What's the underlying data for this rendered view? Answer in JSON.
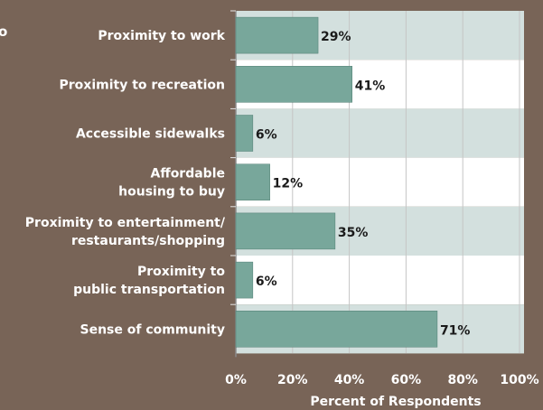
{
  "cut_off_text": "o",
  "colors": {
    "background": "#786457",
    "band_light": "#d3e0de",
    "band_white": "#ffffff",
    "bar": "#78a79b",
    "bar_stroke": "#4f7d72",
    "grid": "#c5c5c5",
    "label_text": "#ffffff",
    "value_text": "#1a1a1a"
  },
  "chart_data": {
    "type": "bar",
    "orientation": "horizontal",
    "categories": [
      [
        "Proximity to work"
      ],
      [
        "Proximity to recreation"
      ],
      [
        "Accessible sidewalks"
      ],
      [
        "Affordable",
        "housing to buy"
      ],
      [
        "Proximity to entertainment/",
        "restaurants/shopping"
      ],
      [
        "Proximity to",
        "public transportation"
      ],
      [
        "Sense of community"
      ]
    ],
    "values": [
      29,
      41,
      6,
      12,
      35,
      6,
      71
    ],
    "value_labels": [
      "29%",
      "41%",
      "6%",
      "12%",
      "35%",
      "6%",
      "71%"
    ],
    "xlabel": "Percent of Respondents",
    "xticks": [
      "0%",
      "20%",
      "40%",
      "60%",
      "80%",
      "100%"
    ],
    "xlim": [
      0,
      100
    ],
    "grid": true
  }
}
